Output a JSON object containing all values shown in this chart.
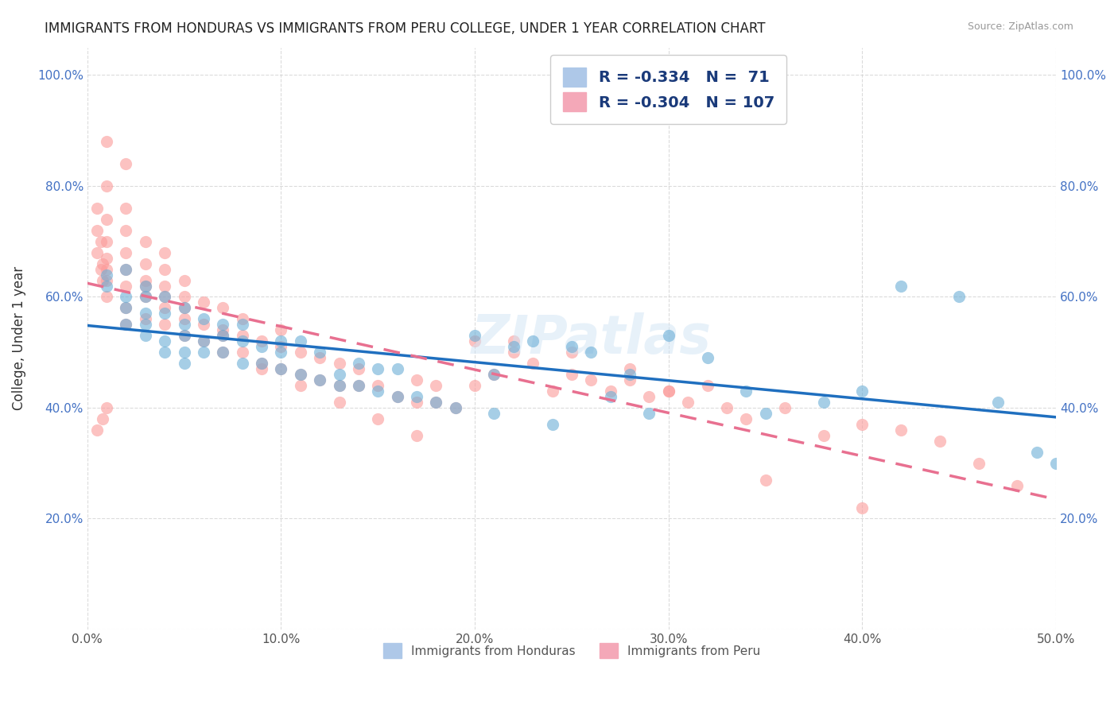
{
  "title": "IMMIGRANTS FROM HONDURAS VS IMMIGRANTS FROM PERU COLLEGE, UNDER 1 YEAR CORRELATION CHART",
  "source": "Source: ZipAtlas.com",
  "xlabel": "",
  "ylabel": "College, Under 1 year",
  "xlim": [
    0.0,
    0.5
  ],
  "ylim": [
    0.0,
    1.05
  ],
  "xtick_labels": [
    "0.0%",
    "10.0%",
    "20.0%",
    "30.0%",
    "40.0%",
    "50.0%"
  ],
  "xtick_vals": [
    0.0,
    0.1,
    0.2,
    0.3,
    0.4,
    0.5
  ],
  "ytick_labels": [
    "",
    "20.0%",
    "40.0%",
    "60.0%",
    "80.0%",
    "100.0%"
  ],
  "ytick_vals": [
    0.0,
    0.2,
    0.4,
    0.6,
    0.8,
    1.0
  ],
  "legend_r_blue": "R = -0.334",
  "legend_n_blue": "N =  71",
  "legend_r_pink": "R = -0.304",
  "legend_n_pink": "N = 107",
  "blue_color": "#6baed6",
  "pink_color": "#fb9a99",
  "blue_line_color": "#1f6fbf",
  "pink_line_color": "#e87090",
  "watermark": "ZIPatlas",
  "legend_label_blue": "Immigrants from Honduras",
  "legend_label_pink": "Immigrants from Peru",
  "honduras_x": [
    0.01,
    0.01,
    0.02,
    0.02,
    0.02,
    0.02,
    0.03,
    0.03,
    0.03,
    0.03,
    0.03,
    0.04,
    0.04,
    0.04,
    0.04,
    0.05,
    0.05,
    0.05,
    0.05,
    0.05,
    0.06,
    0.06,
    0.06,
    0.07,
    0.07,
    0.07,
    0.08,
    0.08,
    0.08,
    0.09,
    0.09,
    0.1,
    0.1,
    0.1,
    0.11,
    0.11,
    0.12,
    0.12,
    0.13,
    0.13,
    0.14,
    0.14,
    0.15,
    0.15,
    0.16,
    0.16,
    0.17,
    0.18,
    0.19,
    0.2,
    0.21,
    0.21,
    0.22,
    0.23,
    0.24,
    0.25,
    0.26,
    0.27,
    0.28,
    0.29,
    0.3,
    0.32,
    0.34,
    0.35,
    0.38,
    0.4,
    0.42,
    0.45,
    0.47,
    0.49,
    0.5
  ],
  "honduras_y": [
    0.62,
    0.64,
    0.55,
    0.58,
    0.6,
    0.65,
    0.53,
    0.55,
    0.57,
    0.6,
    0.62,
    0.5,
    0.52,
    0.57,
    0.6,
    0.48,
    0.5,
    0.53,
    0.55,
    0.58,
    0.5,
    0.52,
    0.56,
    0.5,
    0.53,
    0.55,
    0.48,
    0.52,
    0.55,
    0.48,
    0.51,
    0.47,
    0.5,
    0.52,
    0.46,
    0.52,
    0.45,
    0.5,
    0.44,
    0.46,
    0.44,
    0.48,
    0.43,
    0.47,
    0.42,
    0.47,
    0.42,
    0.41,
    0.4,
    0.53,
    0.39,
    0.46,
    0.51,
    0.52,
    0.37,
    0.51,
    0.5,
    0.42,
    0.46,
    0.39,
    0.53,
    0.49,
    0.43,
    0.39,
    0.41,
    0.43,
    0.62,
    0.6,
    0.41,
    0.32,
    0.3
  ],
  "peru_x": [
    0.005,
    0.005,
    0.005,
    0.007,
    0.007,
    0.008,
    0.008,
    0.01,
    0.01,
    0.01,
    0.01,
    0.01,
    0.01,
    0.01,
    0.01,
    0.02,
    0.02,
    0.02,
    0.02,
    0.02,
    0.02,
    0.02,
    0.03,
    0.03,
    0.03,
    0.03,
    0.03,
    0.04,
    0.04,
    0.04,
    0.04,
    0.04,
    0.05,
    0.05,
    0.05,
    0.05,
    0.06,
    0.06,
    0.06,
    0.07,
    0.07,
    0.07,
    0.08,
    0.08,
    0.08,
    0.09,
    0.09,
    0.1,
    0.1,
    0.1,
    0.11,
    0.11,
    0.12,
    0.12,
    0.13,
    0.13,
    0.14,
    0.14,
    0.15,
    0.16,
    0.17,
    0.17,
    0.18,
    0.18,
    0.19,
    0.2,
    0.21,
    0.22,
    0.23,
    0.24,
    0.25,
    0.26,
    0.27,
    0.28,
    0.29,
    0.3,
    0.31,
    0.32,
    0.34,
    0.36,
    0.38,
    0.4,
    0.42,
    0.44,
    0.46,
    0.48,
    0.005,
    0.008,
    0.01,
    0.02,
    0.03,
    0.04,
    0.05,
    0.07,
    0.09,
    0.11,
    0.13,
    0.15,
    0.17,
    0.2,
    0.22,
    0.25,
    0.28,
    0.3,
    0.33,
    0.35,
    0.4
  ],
  "peru_y": [
    0.68,
    0.72,
    0.76,
    0.65,
    0.7,
    0.63,
    0.66,
    0.6,
    0.63,
    0.65,
    0.67,
    0.7,
    0.74,
    0.8,
    0.88,
    0.58,
    0.62,
    0.65,
    0.68,
    0.72,
    0.76,
    0.84,
    0.56,
    0.6,
    0.63,
    0.66,
    0.7,
    0.55,
    0.58,
    0.62,
    0.65,
    0.68,
    0.53,
    0.56,
    0.6,
    0.63,
    0.52,
    0.55,
    0.59,
    0.5,
    0.54,
    0.58,
    0.5,
    0.53,
    0.56,
    0.48,
    0.52,
    0.47,
    0.51,
    0.54,
    0.46,
    0.5,
    0.45,
    0.49,
    0.44,
    0.48,
    0.44,
    0.47,
    0.44,
    0.42,
    0.41,
    0.45,
    0.41,
    0.44,
    0.4,
    0.52,
    0.46,
    0.5,
    0.48,
    0.43,
    0.46,
    0.45,
    0.43,
    0.47,
    0.42,
    0.43,
    0.41,
    0.44,
    0.38,
    0.4,
    0.35,
    0.37,
    0.36,
    0.34,
    0.3,
    0.26,
    0.36,
    0.38,
    0.4,
    0.55,
    0.62,
    0.6,
    0.58,
    0.53,
    0.47,
    0.44,
    0.41,
    0.38,
    0.35,
    0.44,
    0.52,
    0.5,
    0.45,
    0.43,
    0.4,
    0.27,
    0.22
  ]
}
